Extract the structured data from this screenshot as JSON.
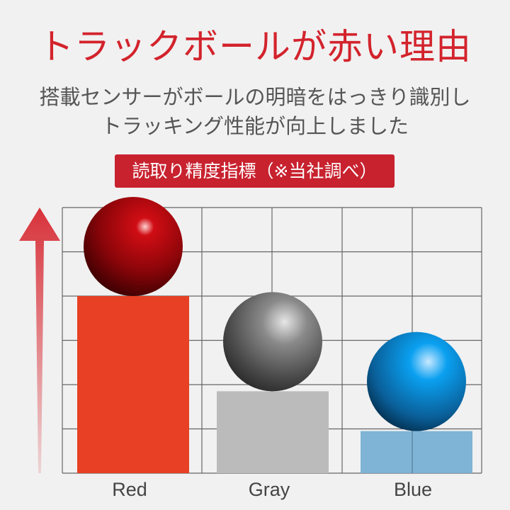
{
  "title": "トラックボールが赤い理由",
  "subtitle": [
    "搭載センサーがボールの明暗をはっきり識別し",
    "トラッキング性能が向上しました"
  ],
  "badge": "読取り精度指標（※当社調べ）",
  "colors": {
    "accent": "#d3232c",
    "badge": "#c8222f"
  },
  "chart_data": {
    "type": "bar",
    "title": "",
    "categories": [
      "Red",
      "Gray",
      "Blue"
    ],
    "values": [
      4.0,
      1.85,
      0.95
    ],
    "ylim": [
      0,
      6
    ],
    "grid": true,
    "bar_colors": [
      "#e84024",
      "#bbbbbb",
      "#78b0d4"
    ],
    "ball_colors": [
      "#b00a10",
      "#707070",
      "#0a7fc4"
    ],
    "xlabel": "",
    "ylabel": ""
  }
}
